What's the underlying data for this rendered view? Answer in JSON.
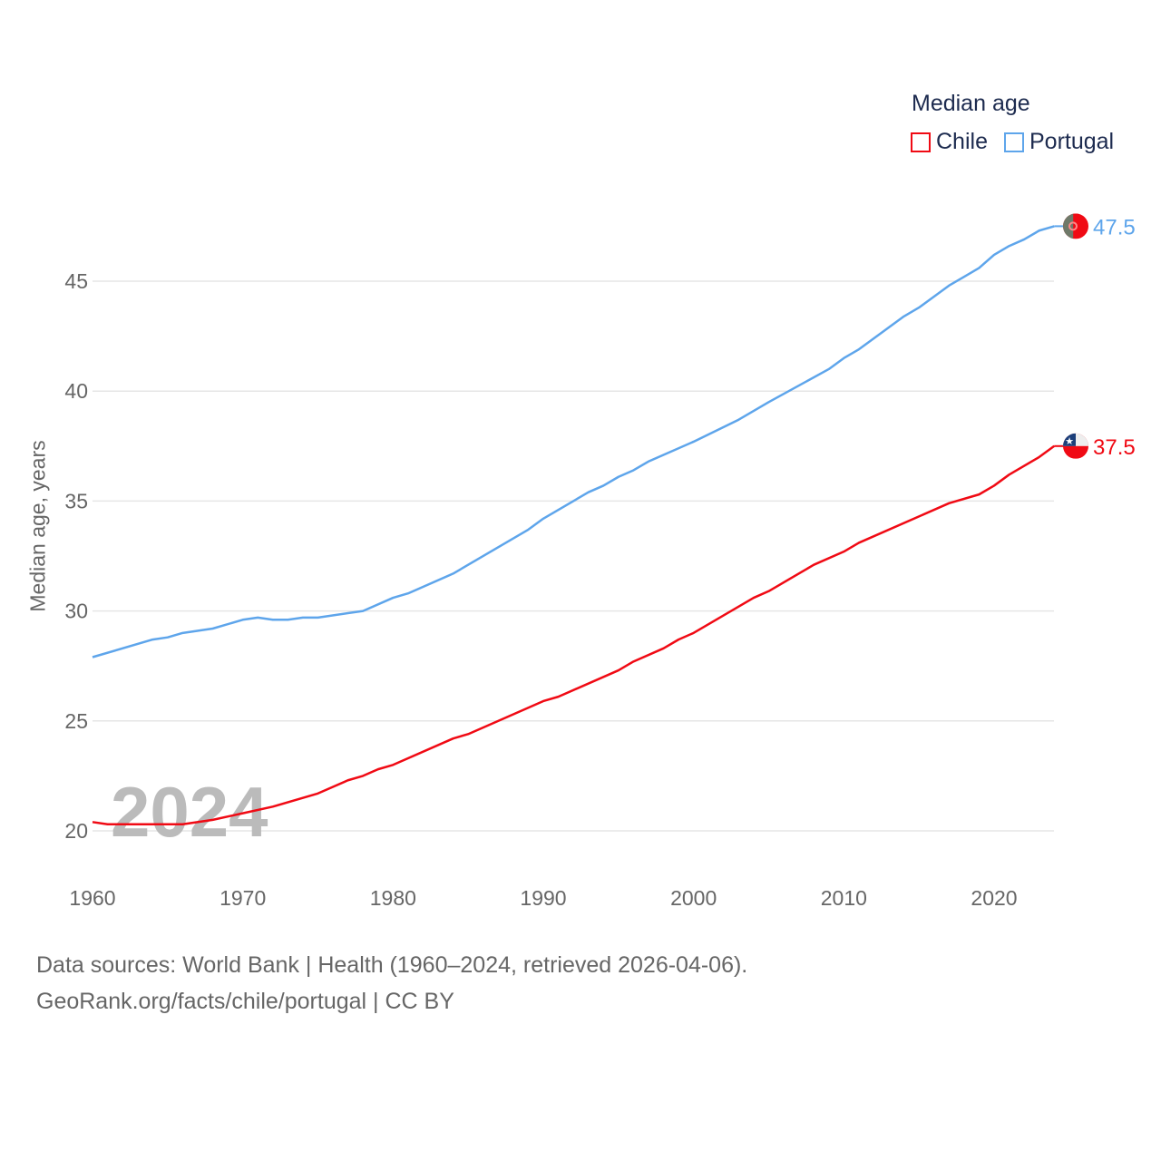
{
  "chart_data": {
    "type": "line",
    "title": "Median age",
    "xlabel": "",
    "ylabel": "Median age, years",
    "xlim": [
      1960,
      2024
    ],
    "ylim": [
      18.5,
      48
    ],
    "xticks": [
      1960,
      1970,
      1980,
      1990,
      2000,
      2010,
      2020
    ],
    "yticks": [
      20,
      25,
      30,
      35,
      40,
      45
    ],
    "grid": "horizontal",
    "legend_position": "top-right",
    "year_watermark": "2024",
    "series": [
      {
        "name": "Chile",
        "color": "#f00a14",
        "end_label": "37.5",
        "x": [
          1960,
          1961,
          1966,
          1968,
          1970,
          1972,
          1975,
          1977,
          1978,
          1979,
          1980,
          1984,
          1985,
          1990,
          1991,
          1995,
          1996,
          1998,
          1999,
          2000,
          2004,
          2005,
          2008,
          2010,
          2011,
          2015,
          2017,
          2019,
          2020,
          2021,
          2023,
          2024
        ],
        "y": [
          20.4,
          20.3,
          20.3,
          20.5,
          20.8,
          21.1,
          21.7,
          22.3,
          22.5,
          22.8,
          23.0,
          24.2,
          24.4,
          25.9,
          26.1,
          27.3,
          27.7,
          28.3,
          28.7,
          29.0,
          30.6,
          30.9,
          32.1,
          32.7,
          33.1,
          34.3,
          34.9,
          35.3,
          35.7,
          36.2,
          37.0,
          37.5
        ]
      },
      {
        "name": "Portugal",
        "color": "#5ea5eb",
        "end_label": "47.5",
        "x": [
          1960,
          1964,
          1965,
          1966,
          1968,
          1970,
          1971,
          1972,
          1973,
          1974,
          1975,
          1978,
          1980,
          1981,
          1984,
          1989,
          1990,
          1993,
          1994,
          1995,
          1996,
          1997,
          2000,
          2003,
          2005,
          2009,
          2010,
          2011,
          2014,
          2015,
          2016,
          2017,
          2018,
          2019,
          2020,
          2021,
          2022,
          2023,
          2024
        ],
        "y": [
          27.9,
          28.7,
          28.8,
          29.0,
          29.2,
          29.6,
          29.7,
          29.6,
          29.6,
          29.7,
          29.7,
          30.0,
          30.6,
          30.8,
          31.7,
          33.7,
          34.2,
          35.4,
          35.7,
          36.1,
          36.4,
          36.8,
          37.7,
          38.7,
          39.5,
          41.0,
          41.5,
          41.9,
          43.4,
          43.8,
          44.3,
          44.8,
          45.2,
          45.6,
          46.2,
          46.6,
          46.9,
          47.3,
          47.5
        ]
      }
    ],
    "source_line1": "Data sources: World Bank | Health (1960–2024, retrieved 2026-04-06).",
    "source_line2": "GeoRank.org/facts/chile/portugal | CC BY"
  }
}
